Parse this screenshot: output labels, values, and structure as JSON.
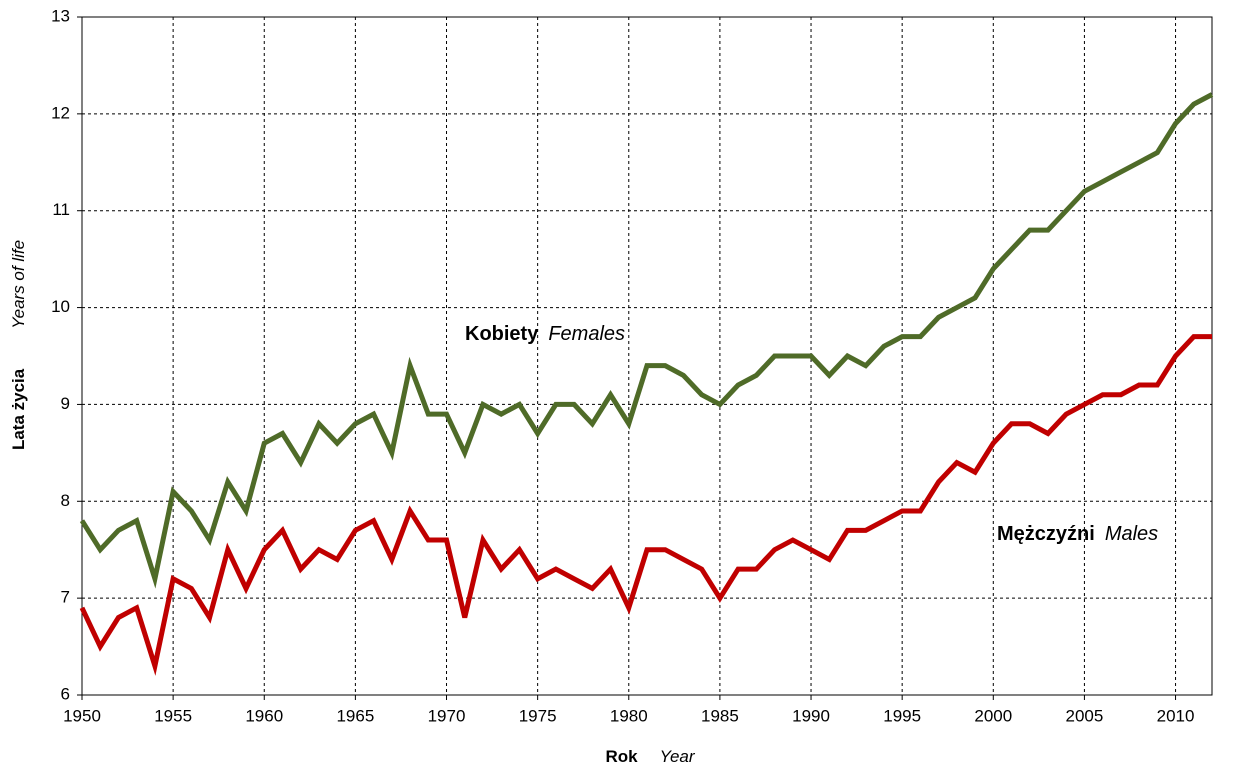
{
  "chart_data": {
    "type": "line",
    "xlabel": "Rok",
    "xlabel_en": "Year",
    "ylabel": "Lata życia",
    "ylabel_en": "Years of life",
    "x": [
      1950,
      1951,
      1952,
      1953,
      1954,
      1955,
      1956,
      1957,
      1958,
      1959,
      1960,
      1961,
      1962,
      1963,
      1964,
      1965,
      1966,
      1967,
      1968,
      1969,
      1970,
      1971,
      1972,
      1973,
      1974,
      1975,
      1976,
      1977,
      1978,
      1979,
      1980,
      1981,
      1982,
      1983,
      1984,
      1985,
      1986,
      1987,
      1988,
      1989,
      1990,
      1991,
      1992,
      1993,
      1994,
      1995,
      1996,
      1997,
      1998,
      1999,
      2000,
      2001,
      2002,
      2003,
      2004,
      2005,
      2006,
      2007,
      2008,
      2009,
      2010,
      2011,
      2012
    ],
    "series": [
      {
        "name": "Kobiety",
        "name_en": "Females",
        "color": "#4f6b28",
        "values": [
          7.8,
          7.5,
          7.7,
          7.8,
          7.2,
          8.1,
          7.9,
          7.6,
          8.2,
          7.9,
          8.6,
          8.7,
          8.4,
          8.8,
          8.6,
          8.8,
          8.9,
          8.5,
          9.4,
          8.9,
          8.9,
          8.5,
          9.0,
          8.9,
          9.0,
          8.7,
          9.0,
          9.0,
          8.8,
          9.1,
          8.8,
          9.4,
          9.4,
          9.3,
          9.1,
          9.0,
          9.2,
          9.3,
          9.5,
          9.5,
          9.5,
          9.3,
          9.5,
          9.4,
          9.6,
          9.7,
          9.7,
          9.9,
          10.0,
          10.1,
          10.4,
          10.6,
          10.8,
          10.8,
          11.0,
          11.2,
          11.3,
          11.4,
          11.5,
          11.6,
          11.9,
          12.1,
          12.2
        ]
      },
      {
        "name": "Mężczyźni",
        "name_en": "Males",
        "color": "#c00000",
        "values": [
          6.9,
          6.5,
          6.8,
          6.9,
          6.3,
          7.2,
          7.1,
          6.8,
          7.5,
          7.1,
          7.5,
          7.7,
          7.3,
          7.5,
          7.4,
          7.7,
          7.8,
          7.4,
          7.9,
          7.6,
          7.6,
          6.8,
          7.6,
          7.3,
          7.5,
          7.2,
          7.3,
          7.2,
          7.1,
          7.3,
          6.9,
          7.5,
          7.5,
          7.4,
          7.3,
          7.0,
          7.3,
          7.3,
          7.5,
          7.6,
          7.5,
          7.4,
          7.7,
          7.7,
          7.8,
          7.9,
          7.9,
          8.2,
          8.4,
          8.3,
          8.6,
          8.8,
          8.8,
          8.7,
          8.9,
          9.0,
          9.1,
          9.1,
          9.2,
          9.2,
          9.5,
          9.7,
          9.7
        ]
      }
    ],
    "xlim": [
      1950,
      2012
    ],
    "xticks": [
      1950,
      1955,
      1960,
      1965,
      1970,
      1975,
      1980,
      1985,
      1990,
      1995,
      2000,
      2005,
      2010
    ],
    "ylim": [
      6,
      13
    ],
    "yticks": [
      6,
      7,
      8,
      9,
      10,
      11,
      12,
      13
    ],
    "grid": true
  }
}
